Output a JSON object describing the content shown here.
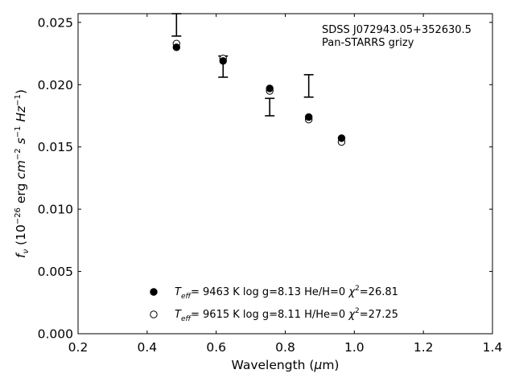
{
  "chart_data": {
    "type": "scatter",
    "xlabel": "Wavelength (μm)",
    "ylabel": "f_ν (10^-26 erg cm^-2 s^-1 Hz^-1)",
    "xlim": [
      0.2,
      1.4
    ],
    "ylim": [
      0.0,
      0.0257
    ],
    "x_ticks": [
      "0.2",
      "0.4",
      "0.6",
      "0.8",
      "1.0",
      "1.2",
      "1.4"
    ],
    "y_ticks": [
      "0.000",
      "0.005",
      "0.010",
      "0.015",
      "0.020",
      "0.025"
    ],
    "grid": false,
    "legend_position": "bottom-center",
    "annotations": [
      "SDSS J072943.05+352630.5",
      "Pan-STARRS grizy"
    ],
    "observed": {
      "x": [
        0.485,
        0.62,
        0.755,
        0.868,
        0.963
      ],
      "y_low": [
        0.0239,
        0.0206,
        0.0175,
        0.019,
        null
      ],
      "y_high": [
        0.0257,
        0.0223,
        0.0189,
        0.0208,
        null
      ]
    },
    "series": [
      {
        "name": "Teff= 9463 K log g=8.13 He/H=0 χ²=26.81",
        "marker": "filled-circle",
        "x": [
          0.485,
          0.62,
          0.755,
          0.868,
          0.963
        ],
        "y": [
          0.023,
          0.0219,
          0.0197,
          0.0174,
          0.0157
        ]
      },
      {
        "name": "Teff= 9615 K log g=8.11 H/He=0 χ²=27.25",
        "marker": "open-circle",
        "x": [
          0.485,
          0.62,
          0.755,
          0.868,
          0.963
        ],
        "y": [
          0.0233,
          0.0221,
          0.0195,
          0.0172,
          0.0154
        ]
      }
    ],
    "legend": [
      {
        "marker": "filled-circle",
        "teff": "9463 K",
        "logg": "log g=8.13",
        "comp": "He/H=0",
        "chi": "=26.81"
      },
      {
        "marker": "open-circle",
        "teff": "9615 K",
        "logg": "log g=8.11",
        "comp": "H/He=0",
        "chi": "=27.25"
      }
    ]
  }
}
